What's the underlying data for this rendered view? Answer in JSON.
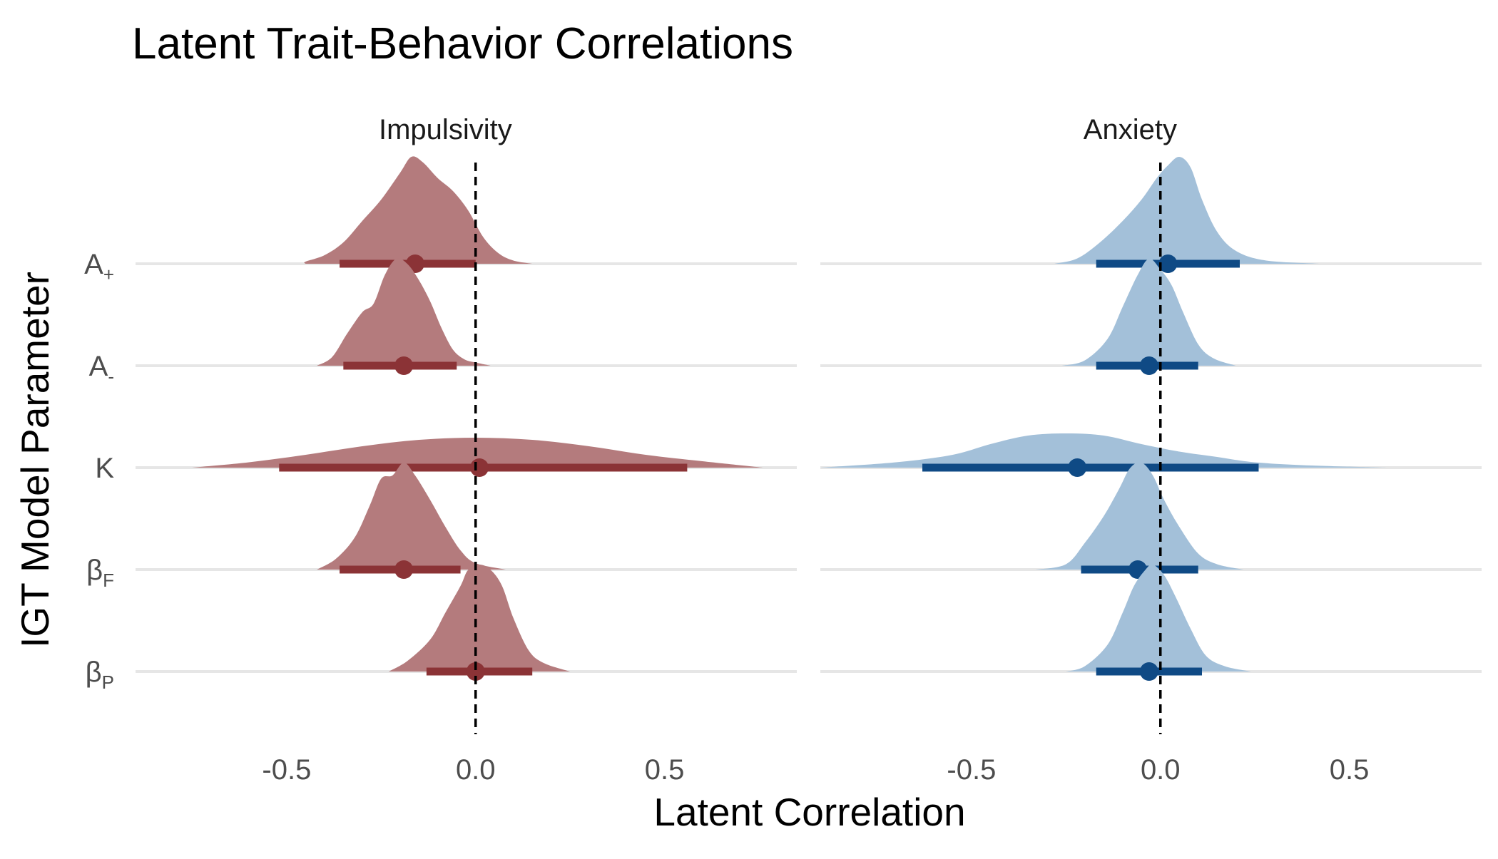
{
  "chart_data": {
    "type": "ridgeline",
    "title": "Latent Trait-Behavior Correlations",
    "xlabel": "Latent Correlation",
    "ylabel": "IGT Model Parameter",
    "xlim": [
      -0.9,
      0.85
    ],
    "x_ticks": [
      "-0.5",
      "0.0",
      "0.5"
    ],
    "x_tick_values": [
      -0.5,
      0.0,
      0.5
    ],
    "reference_line_x": 0.0,
    "grid": "horizontal baselines only",
    "legend": "none",
    "colors": {
      "Impulsivity": {
        "fill": "#b47b7d",
        "line": "#8b3336"
      },
      "Anxiety": {
        "fill": "#a3c0d9",
        "line": "#0f4a85"
      },
      "baseline": "#e6e6e6",
      "reference": "#000000"
    },
    "parameters": [
      {
        "base": "A",
        "sub": "+"
      },
      {
        "base": "A",
        "sub": "-"
      },
      {
        "base": "K",
        "sub": ""
      },
      {
        "base": "β",
        "sub": "F"
      },
      {
        "base": "β",
        "sub": "P"
      }
    ],
    "panels": [
      {
        "name": "Impulsivity",
        "rows": [
          {
            "parameter": "A+",
            "median": -0.16,
            "ci": [
              -0.36,
              0.0
            ],
            "range": [
              -0.45,
              0.15
            ],
            "density": [
              [
                -0.45,
                0.02
              ],
              [
                -0.4,
                0.08
              ],
              [
                -0.35,
                0.2
              ],
              [
                -0.3,
                0.4
              ],
              [
                -0.25,
                0.6
              ],
              [
                -0.2,
                0.85
              ],
              [
                -0.17,
                1.0
              ],
              [
                -0.14,
                0.95
              ],
              [
                -0.1,
                0.8
              ],
              [
                -0.06,
                0.68
              ],
              [
                -0.02,
                0.5
              ],
              [
                0.02,
                0.25
              ],
              [
                0.06,
                0.1
              ],
              [
                0.1,
                0.03
              ],
              [
                0.15,
                0.0
              ]
            ]
          },
          {
            "parameter": "A-",
            "median": -0.19,
            "ci": [
              -0.35,
              -0.05
            ],
            "range": [
              -0.42,
              0.04
            ],
            "density": [
              [
                -0.42,
                0.0
              ],
              [
                -0.38,
                0.08
              ],
              [
                -0.34,
                0.3
              ],
              [
                -0.3,
                0.5
              ],
              [
                -0.27,
                0.58
              ],
              [
                -0.24,
                0.85
              ],
              [
                -0.21,
                1.0
              ],
              [
                -0.18,
                0.95
              ],
              [
                -0.15,
                0.8
              ],
              [
                -0.12,
                0.6
              ],
              [
                -0.09,
                0.35
              ],
              [
                -0.06,
                0.15
              ],
              [
                -0.03,
                0.06
              ],
              [
                0.0,
                0.03
              ],
              [
                0.04,
                0.0
              ]
            ]
          },
          {
            "parameter": "K",
            "median": 0.01,
            "ci": [
              -0.52,
              0.56
            ],
            "range": [
              -0.75,
              0.76
            ],
            "density": [
              [
                -0.75,
                0.0
              ],
              [
                -0.6,
                0.05
              ],
              [
                -0.45,
                0.12
              ],
              [
                -0.3,
                0.2
              ],
              [
                -0.15,
                0.26
              ],
              [
                0.0,
                0.28
              ],
              [
                0.15,
                0.26
              ],
              [
                0.3,
                0.2
              ],
              [
                0.45,
                0.12
              ],
              [
                0.6,
                0.06
              ],
              [
                0.76,
                0.0
              ]
            ]
          },
          {
            "parameter": "βF",
            "median": -0.19,
            "ci": [
              -0.36,
              -0.04
            ],
            "range": [
              -0.42,
              0.08
            ],
            "density": [
              [
                -0.42,
                0.0
              ],
              [
                -0.37,
                0.1
              ],
              [
                -0.32,
                0.3
              ],
              [
                -0.28,
                0.6
              ],
              [
                -0.25,
                0.85
              ],
              [
                -0.22,
                0.88
              ],
              [
                -0.19,
                1.0
              ],
              [
                -0.16,
                0.88
              ],
              [
                -0.12,
                0.65
              ],
              [
                -0.08,
                0.4
              ],
              [
                -0.04,
                0.18
              ],
              [
                0.0,
                0.06
              ],
              [
                0.08,
                0.0
              ]
            ]
          },
          {
            "parameter": "βP",
            "median": 0.0,
            "ci": [
              -0.13,
              0.15
            ],
            "range": [
              -0.23,
              0.25
            ],
            "density": [
              [
                -0.23,
                0.0
              ],
              [
                -0.18,
                0.1
              ],
              [
                -0.12,
                0.3
              ],
              [
                -0.08,
                0.55
              ],
              [
                -0.04,
                0.8
              ],
              [
                -0.02,
                0.95
              ],
              [
                0.01,
                1.0
              ],
              [
                0.04,
                0.95
              ],
              [
                0.07,
                0.8
              ],
              [
                0.1,
                0.5
              ],
              [
                0.14,
                0.2
              ],
              [
                0.18,
                0.08
              ],
              [
                0.25,
                0.0
              ]
            ]
          }
        ]
      },
      {
        "name": "Anxiety",
        "rows": [
          {
            "parameter": "A+",
            "median": 0.02,
            "ci": [
              -0.17,
              0.21
            ],
            "range": [
              -0.28,
              0.42
            ],
            "density": [
              [
                -0.28,
                0.0
              ],
              [
                -0.22,
                0.05
              ],
              [
                -0.16,
                0.2
              ],
              [
                -0.1,
                0.4
              ],
              [
                -0.05,
                0.6
              ],
              [
                -0.01,
                0.8
              ],
              [
                0.02,
                0.92
              ],
              [
                0.05,
                1.0
              ],
              [
                0.08,
                0.9
              ],
              [
                0.11,
                0.6
              ],
              [
                0.15,
                0.3
              ],
              [
                0.2,
                0.12
              ],
              [
                0.28,
                0.03
              ],
              [
                0.42,
                0.0
              ]
            ]
          },
          {
            "parameter": "A-",
            "median": -0.03,
            "ci": [
              -0.17,
              0.1
            ],
            "range": [
              -0.26,
              0.2
            ],
            "density": [
              [
                -0.26,
                0.0
              ],
              [
                -0.2,
                0.05
              ],
              [
                -0.14,
                0.25
              ],
              [
                -0.1,
                0.55
              ],
              [
                -0.06,
                0.85
              ],
              [
                -0.03,
                1.0
              ],
              [
                0.0,
                0.9
              ],
              [
                0.03,
                0.75
              ],
              [
                0.06,
                0.5
              ],
              [
                0.1,
                0.2
              ],
              [
                0.14,
                0.07
              ],
              [
                0.2,
                0.0
              ]
            ]
          },
          {
            "parameter": "K",
            "median": -0.22,
            "ci": [
              -0.63,
              0.26
            ],
            "range": [
              -0.9,
              0.6
            ],
            "density": [
              [
                -0.9,
                0.0
              ],
              [
                -0.7,
                0.05
              ],
              [
                -0.55,
                0.12
              ],
              [
                -0.45,
                0.22
              ],
              [
                -0.35,
                0.3
              ],
              [
                -0.25,
                0.32
              ],
              [
                -0.15,
                0.3
              ],
              [
                -0.05,
                0.22
              ],
              [
                0.05,
                0.15
              ],
              [
                0.15,
                0.1
              ],
              [
                0.25,
                0.05
              ],
              [
                0.4,
                0.02
              ],
              [
                0.6,
                0.0
              ]
            ]
          },
          {
            "parameter": "βF",
            "median": -0.06,
            "ci": [
              -0.21,
              0.1
            ],
            "range": [
              -0.33,
              0.22
            ],
            "density": [
              [
                -0.33,
                0.0
              ],
              [
                -0.25,
                0.05
              ],
              [
                -0.2,
                0.25
              ],
              [
                -0.15,
                0.5
              ],
              [
                -0.11,
                0.75
              ],
              [
                -0.08,
                0.95
              ],
              [
                -0.05,
                1.0
              ],
              [
                -0.02,
                0.88
              ],
              [
                0.01,
                0.65
              ],
              [
                0.05,
                0.4
              ],
              [
                0.1,
                0.15
              ],
              [
                0.15,
                0.05
              ],
              [
                0.22,
                0.0
              ]
            ]
          },
          {
            "parameter": "βP",
            "median": -0.03,
            "ci": [
              -0.17,
              0.11
            ],
            "range": [
              -0.25,
              0.24
            ],
            "density": [
              [
                -0.25,
                0.0
              ],
              [
                -0.2,
                0.05
              ],
              [
                -0.14,
                0.25
              ],
              [
                -0.1,
                0.55
              ],
              [
                -0.07,
                0.8
              ],
              [
                -0.04,
                0.95
              ],
              [
                -0.02,
                1.0
              ],
              [
                0.01,
                0.9
              ],
              [
                0.04,
                0.7
              ],
              [
                0.08,
                0.4
              ],
              [
                0.12,
                0.15
              ],
              [
                0.17,
                0.05
              ],
              [
                0.24,
                0.0
              ]
            ]
          }
        ]
      }
    ]
  }
}
